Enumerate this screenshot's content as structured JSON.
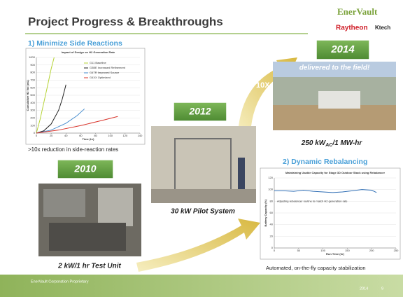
{
  "header": {
    "title": "Project Progress & Breakthroughs",
    "logos": [
      "EnerVault",
      "Raytheon",
      "Ktech"
    ]
  },
  "side_reactions": {
    "heading": "1) Minimize Side Reactions",
    "chart": {
      "type": "line",
      "title": "Impact of Design on H2 Generation Rate",
      "x_label": "Time (hr)",
      "y_label": "Cumulative H2 Vol (mL)",
      "xlim": [
        0,
        140
      ],
      "xticks": [
        0,
        20,
        40,
        60,
        80,
        100,
        120,
        140
      ],
      "ylim": [
        0,
        1000
      ],
      "yticks": [
        0,
        100,
        200,
        300,
        400,
        500,
        600,
        700,
        800,
        900,
        1000
      ],
      "series": [
        {
          "name": "G11 Baseline",
          "color": "#b5d334",
          "x": [
            0,
            5,
            10,
            15,
            20,
            24
          ],
          "values": [
            0,
            180,
            400,
            620,
            850,
            1000
          ]
        },
        {
          "name": "G3BE Increased Refinement",
          "color": "#222222",
          "x": [
            0,
            10,
            20,
            30,
            35,
            40
          ],
          "values": [
            0,
            30,
            120,
            300,
            450,
            640
          ]
        },
        {
          "name": "G4TR Improved Source",
          "color": "#4a8fd0",
          "x": [
            0,
            20,
            40,
            55,
            65
          ],
          "values": [
            0,
            40,
            130,
            230,
            320
          ]
        },
        {
          "name": "G4XX Optimized",
          "color": "#d9342b",
          "x": [
            0,
            30,
            60,
            90,
            110
          ],
          "values": [
            0,
            40,
            100,
            170,
            220
          ]
        }
      ]
    },
    "caption": ">10x reduction in side-reaction rates"
  },
  "milestones": [
    {
      "year": "2010",
      "caption": "2 kW/1 hr Test Unit"
    },
    {
      "year": "2012",
      "caption": "30 kW Pilot System"
    },
    {
      "year": "2014",
      "banner": "delivered to the field!",
      "caption": [
        "250 kW",
        "AC",
        "/1 MW-hr"
      ]
    }
  ],
  "arrows": [
    "10X",
    "10X"
  ],
  "rebalancing": {
    "heading": "2) Dynamic Rebalancing",
    "chart": {
      "type": "line",
      "title": "Maintaining Usable Capacity for Stage 3D Outdoor Stack using Rebalancer",
      "x_label": "Run Time (hr)",
      "y_label": "Battery Capacity (%)",
      "annotation": "Adjusting rebalancer routine to match H2 generation rate",
      "xlim": [
        0,
        250
      ],
      "xticks": [
        0,
        50,
        100,
        150,
        200,
        250
      ],
      "ylim": [
        0,
        120
      ],
      "yticks": [
        0,
        20,
        40,
        60,
        80,
        100,
        120
      ],
      "series": [
        {
          "name": "Capacity",
          "color": "#2e6db4",
          "x": [
            0,
            20,
            40,
            60,
            80,
            100,
            120,
            140,
            160,
            180,
            200,
            210
          ],
          "values": [
            98,
            98,
            97,
            99,
            97,
            96,
            95,
            96,
            98,
            100,
            99,
            95
          ]
        }
      ]
    },
    "caption": "Automated, on-the-fly capacity stabilization"
  },
  "footer": {
    "text": "EnerVault Corporation Proprietary",
    "year": "2014",
    "page": "9"
  }
}
